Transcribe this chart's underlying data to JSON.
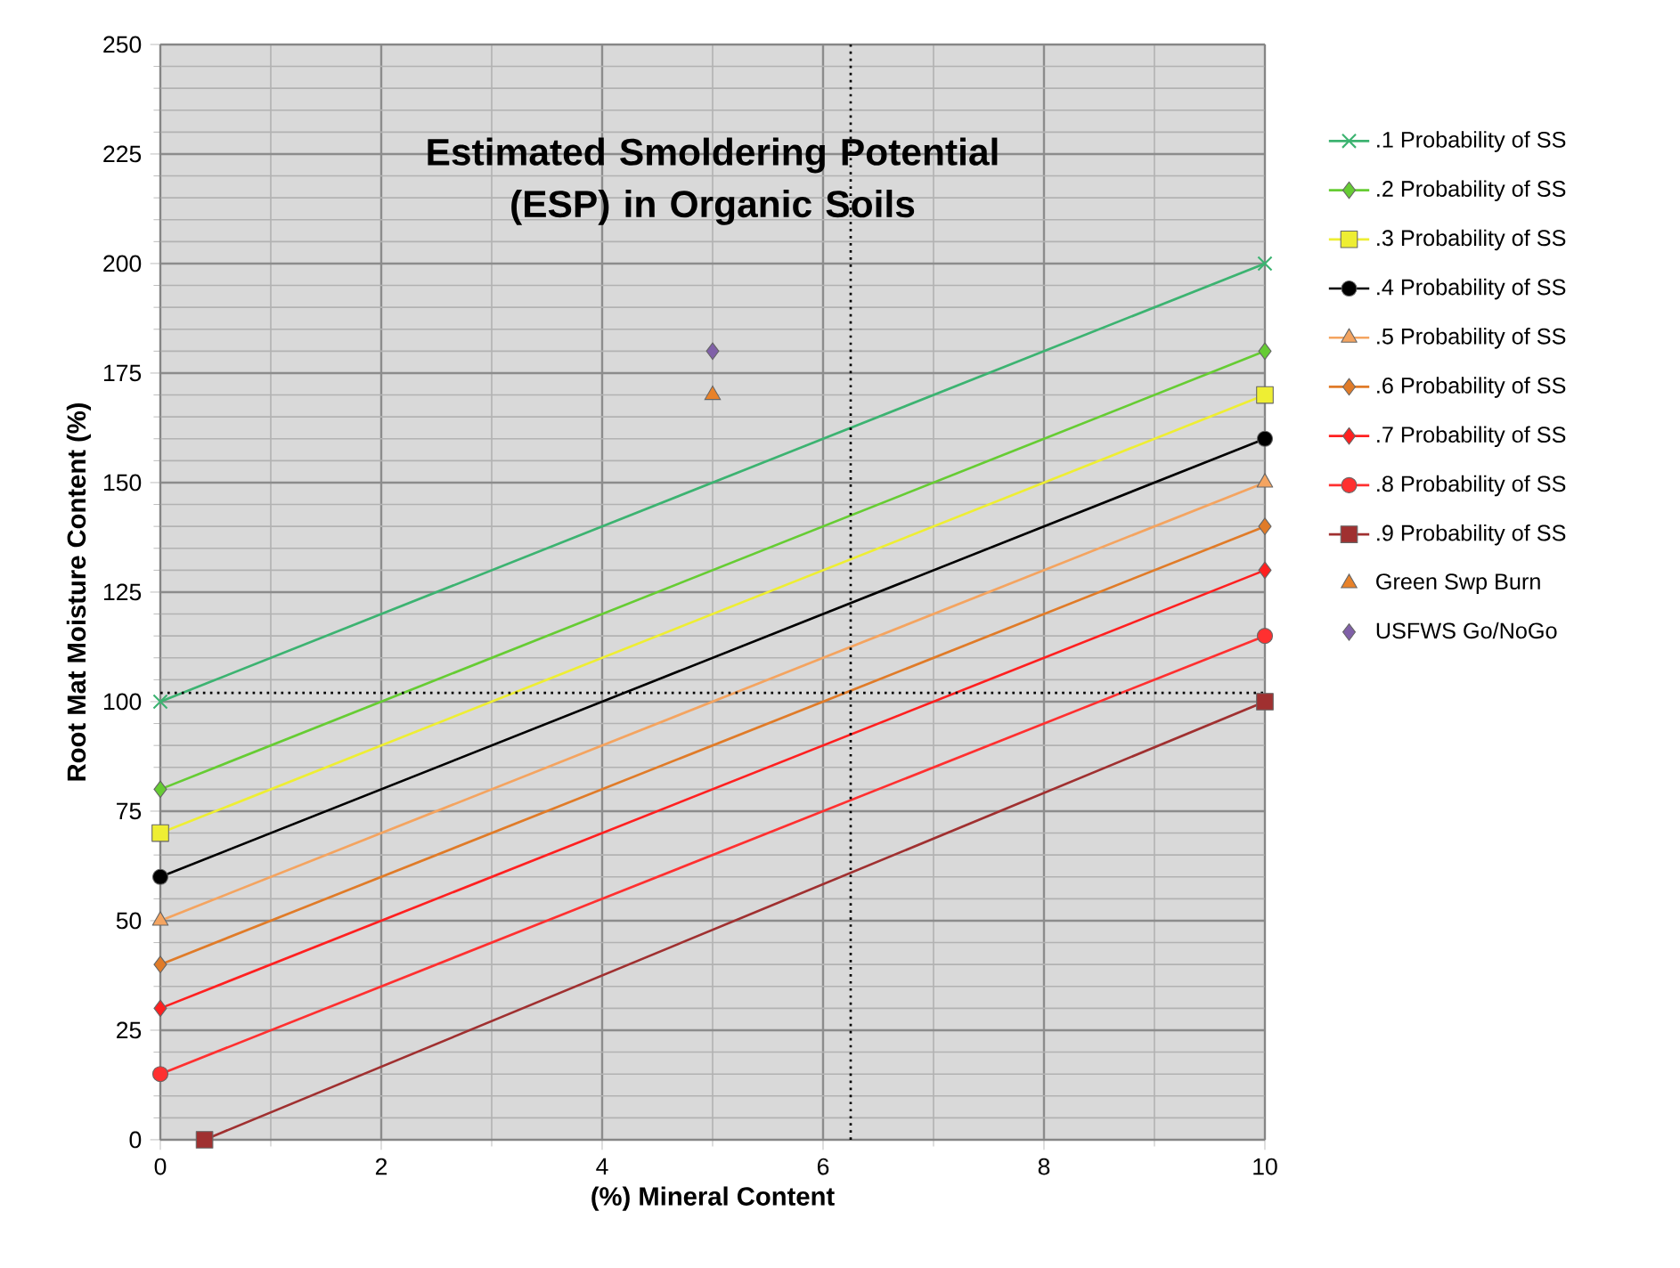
{
  "chart_data": {
    "type": "line",
    "title": "Estimated Smoldering Potential (ESP) in Organic Soils",
    "xlabel": "(%) Mineral Content",
    "ylabel": "Root Mat Moisture Content (%)",
    "xlim": [
      0,
      10
    ],
    "xticks": [
      0,
      2,
      4,
      6,
      8,
      10
    ],
    "ylim": [
      0,
      250
    ],
    "yticks": [
      0,
      25,
      50,
      75,
      100,
      125,
      150,
      175,
      200,
      225,
      250
    ],
    "grid": true,
    "legend": "right",
    "line_style": "solid",
    "series": [
      {
        "name": ".1 Probability of SS",
        "color": "#3cb371",
        "marker": "cross",
        "x": [
          0,
          10
        ],
        "values": [
          100,
          200
        ]
      },
      {
        "name": ".2 Probability of SS",
        "color": "#66cc33",
        "marker": "diamond",
        "x": [
          0,
          10
        ],
        "values": [
          80,
          180
        ]
      },
      {
        "name": ".3 Probability of SS",
        "color": "#eeee33",
        "marker": "square",
        "x": [
          0,
          10
        ],
        "values": [
          70,
          170
        ]
      },
      {
        "name": ".4 Probability of SS",
        "color": "#000000",
        "marker": "circle",
        "x": [
          0,
          10
        ],
        "values": [
          60,
          160
        ]
      },
      {
        "name": ".5 Probability of SS",
        "color": "#f4a460",
        "marker": "triangle",
        "x": [
          0,
          10
        ],
        "values": [
          50,
          150
        ]
      },
      {
        "name": ".6 Probability of SS",
        "color": "#e07b28",
        "marker": "diamond",
        "x": [
          0,
          10
        ],
        "values": [
          40,
          140
        ]
      },
      {
        "name": ".7 Probability of SS",
        "color": "#ff2020",
        "marker": "diamond",
        "x": [
          0,
          10
        ],
        "values": [
          30,
          130
        ]
      },
      {
        "name": ".8 Probability of SS",
        "color": "#ff3030",
        "marker": "circle",
        "x": [
          0,
          10
        ],
        "values": [
          15,
          115
        ]
      },
      {
        "name": ".9 Probability of SS",
        "color": "#a03030",
        "marker": "square",
        "x": [
          0.4,
          10
        ],
        "values": [
          0,
          100
        ]
      },
      {
        "name": "Green Swp Burn",
        "type": "scatter",
        "color": "#e8822a",
        "marker": "triangle",
        "x": [
          5
        ],
        "values": [
          170
        ]
      },
      {
        "name": "USFWS Go/NoGo",
        "type": "scatter",
        "color": "#8060a8",
        "marker": "diamond",
        "x": [
          5
        ],
        "values": [
          180
        ]
      }
    ],
    "ref_lines": [
      {
        "axis": "x",
        "value": 6.25,
        "color": "#000000",
        "line_style": "dotted"
      },
      {
        "axis": "y",
        "value": 102,
        "color": "#000000",
        "line_style": "dotted"
      }
    ]
  }
}
